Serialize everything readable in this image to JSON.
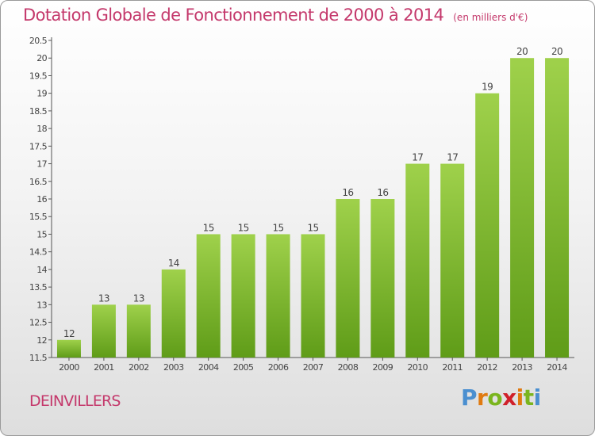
{
  "header": {
    "title": "Dotation Globale de Fonctionnement de 2000 à 2014",
    "subtitle": "(en milliers d'€)"
  },
  "footer": {
    "commune": "DEINVILLERS",
    "logo": "Proxiti"
  },
  "colors": {
    "title": "#c4386b",
    "bar_light": "#9fd14b",
    "bar_dark": "#5f9c18",
    "logo_letters": [
      "#4a8fd0",
      "#e07a10",
      "#7ab51e",
      "#d0202a",
      "#e07a10",
      "#7ab51e",
      "#4a8fd0"
    ]
  },
  "chart_data": {
    "type": "bar",
    "title": "Dotation Globale de Fonctionnement de 2000 à 2014",
    "subtitle": "(en milliers d'€)",
    "categories": [
      "2000",
      "2001",
      "2002",
      "2003",
      "2004",
      "2005",
      "2006",
      "2007",
      "2008",
      "2009",
      "2010",
      "2011",
      "2012",
      "2013",
      "2014"
    ],
    "values": [
      12,
      13,
      13,
      14,
      15,
      15,
      15,
      15,
      16,
      16,
      17,
      17,
      19,
      20,
      20
    ],
    "ylim": [
      11.5,
      20.5
    ],
    "yticks": [
      11.5,
      12,
      12.5,
      13,
      13.5,
      14,
      14.5,
      15,
      15.5,
      16,
      16.5,
      17,
      17.5,
      18,
      18.5,
      19,
      19.5,
      20,
      20.5
    ],
    "grid": false,
    "legend": "none",
    "data_labels": true
  }
}
